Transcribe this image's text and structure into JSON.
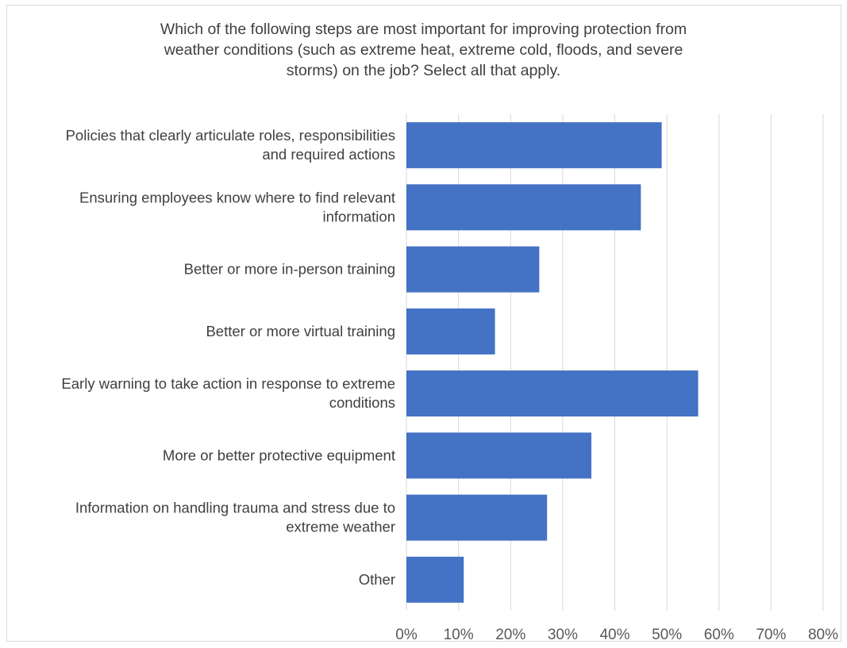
{
  "chart_data": {
    "type": "bar",
    "orientation": "horizontal",
    "title": "Which of the following steps are most important for improving protection from\nweather conditions (such as extreme heat, extreme cold, floods, and severe\nstorms) on the job? Select all that apply.",
    "categories": [
      [
        "Policies that clearly articulate roles, responsibilities",
        "and required actions"
      ],
      [
        "Ensuring employees know where to find relevant",
        "information"
      ],
      [
        "Better or more in-person training"
      ],
      [
        "Better or more virtual training"
      ],
      [
        "Early warning to take action in response to extreme",
        "conditions"
      ],
      [
        "More or better protective equipment"
      ],
      [
        "Information on handling trauma and stress due to",
        "extreme weather"
      ],
      [
        "Other"
      ]
    ],
    "values": [
      49,
      45,
      25.5,
      17,
      56,
      35.5,
      27,
      11
    ],
    "xlim": [
      0,
      80
    ],
    "x_ticks": [
      0,
      10,
      20,
      30,
      40,
      50,
      60,
      70,
      80
    ],
    "x_tick_labels": [
      "0%",
      "10%",
      "20%",
      "30%",
      "40%",
      "50%",
      "60%",
      "70%",
      "80%"
    ],
    "grid": true,
    "legend": "none",
    "colors": {
      "bar": "#4472c4",
      "grid": "#d9d9d9",
      "text": "#404040"
    }
  }
}
